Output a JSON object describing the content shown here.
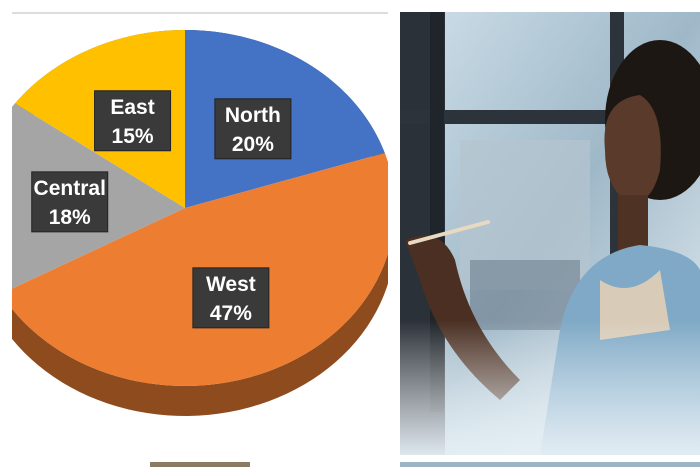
{
  "chart_data": {
    "type": "pie",
    "categories": [
      "North",
      "West",
      "Central",
      "East"
    ],
    "values": [
      20,
      47,
      18,
      15
    ],
    "value_labels": [
      "20%",
      "47%",
      "18%",
      "15%"
    ],
    "colors": [
      "#4472c4",
      "#ed7d31",
      "#a5a5a5",
      "#ffc000"
    ]
  }
}
